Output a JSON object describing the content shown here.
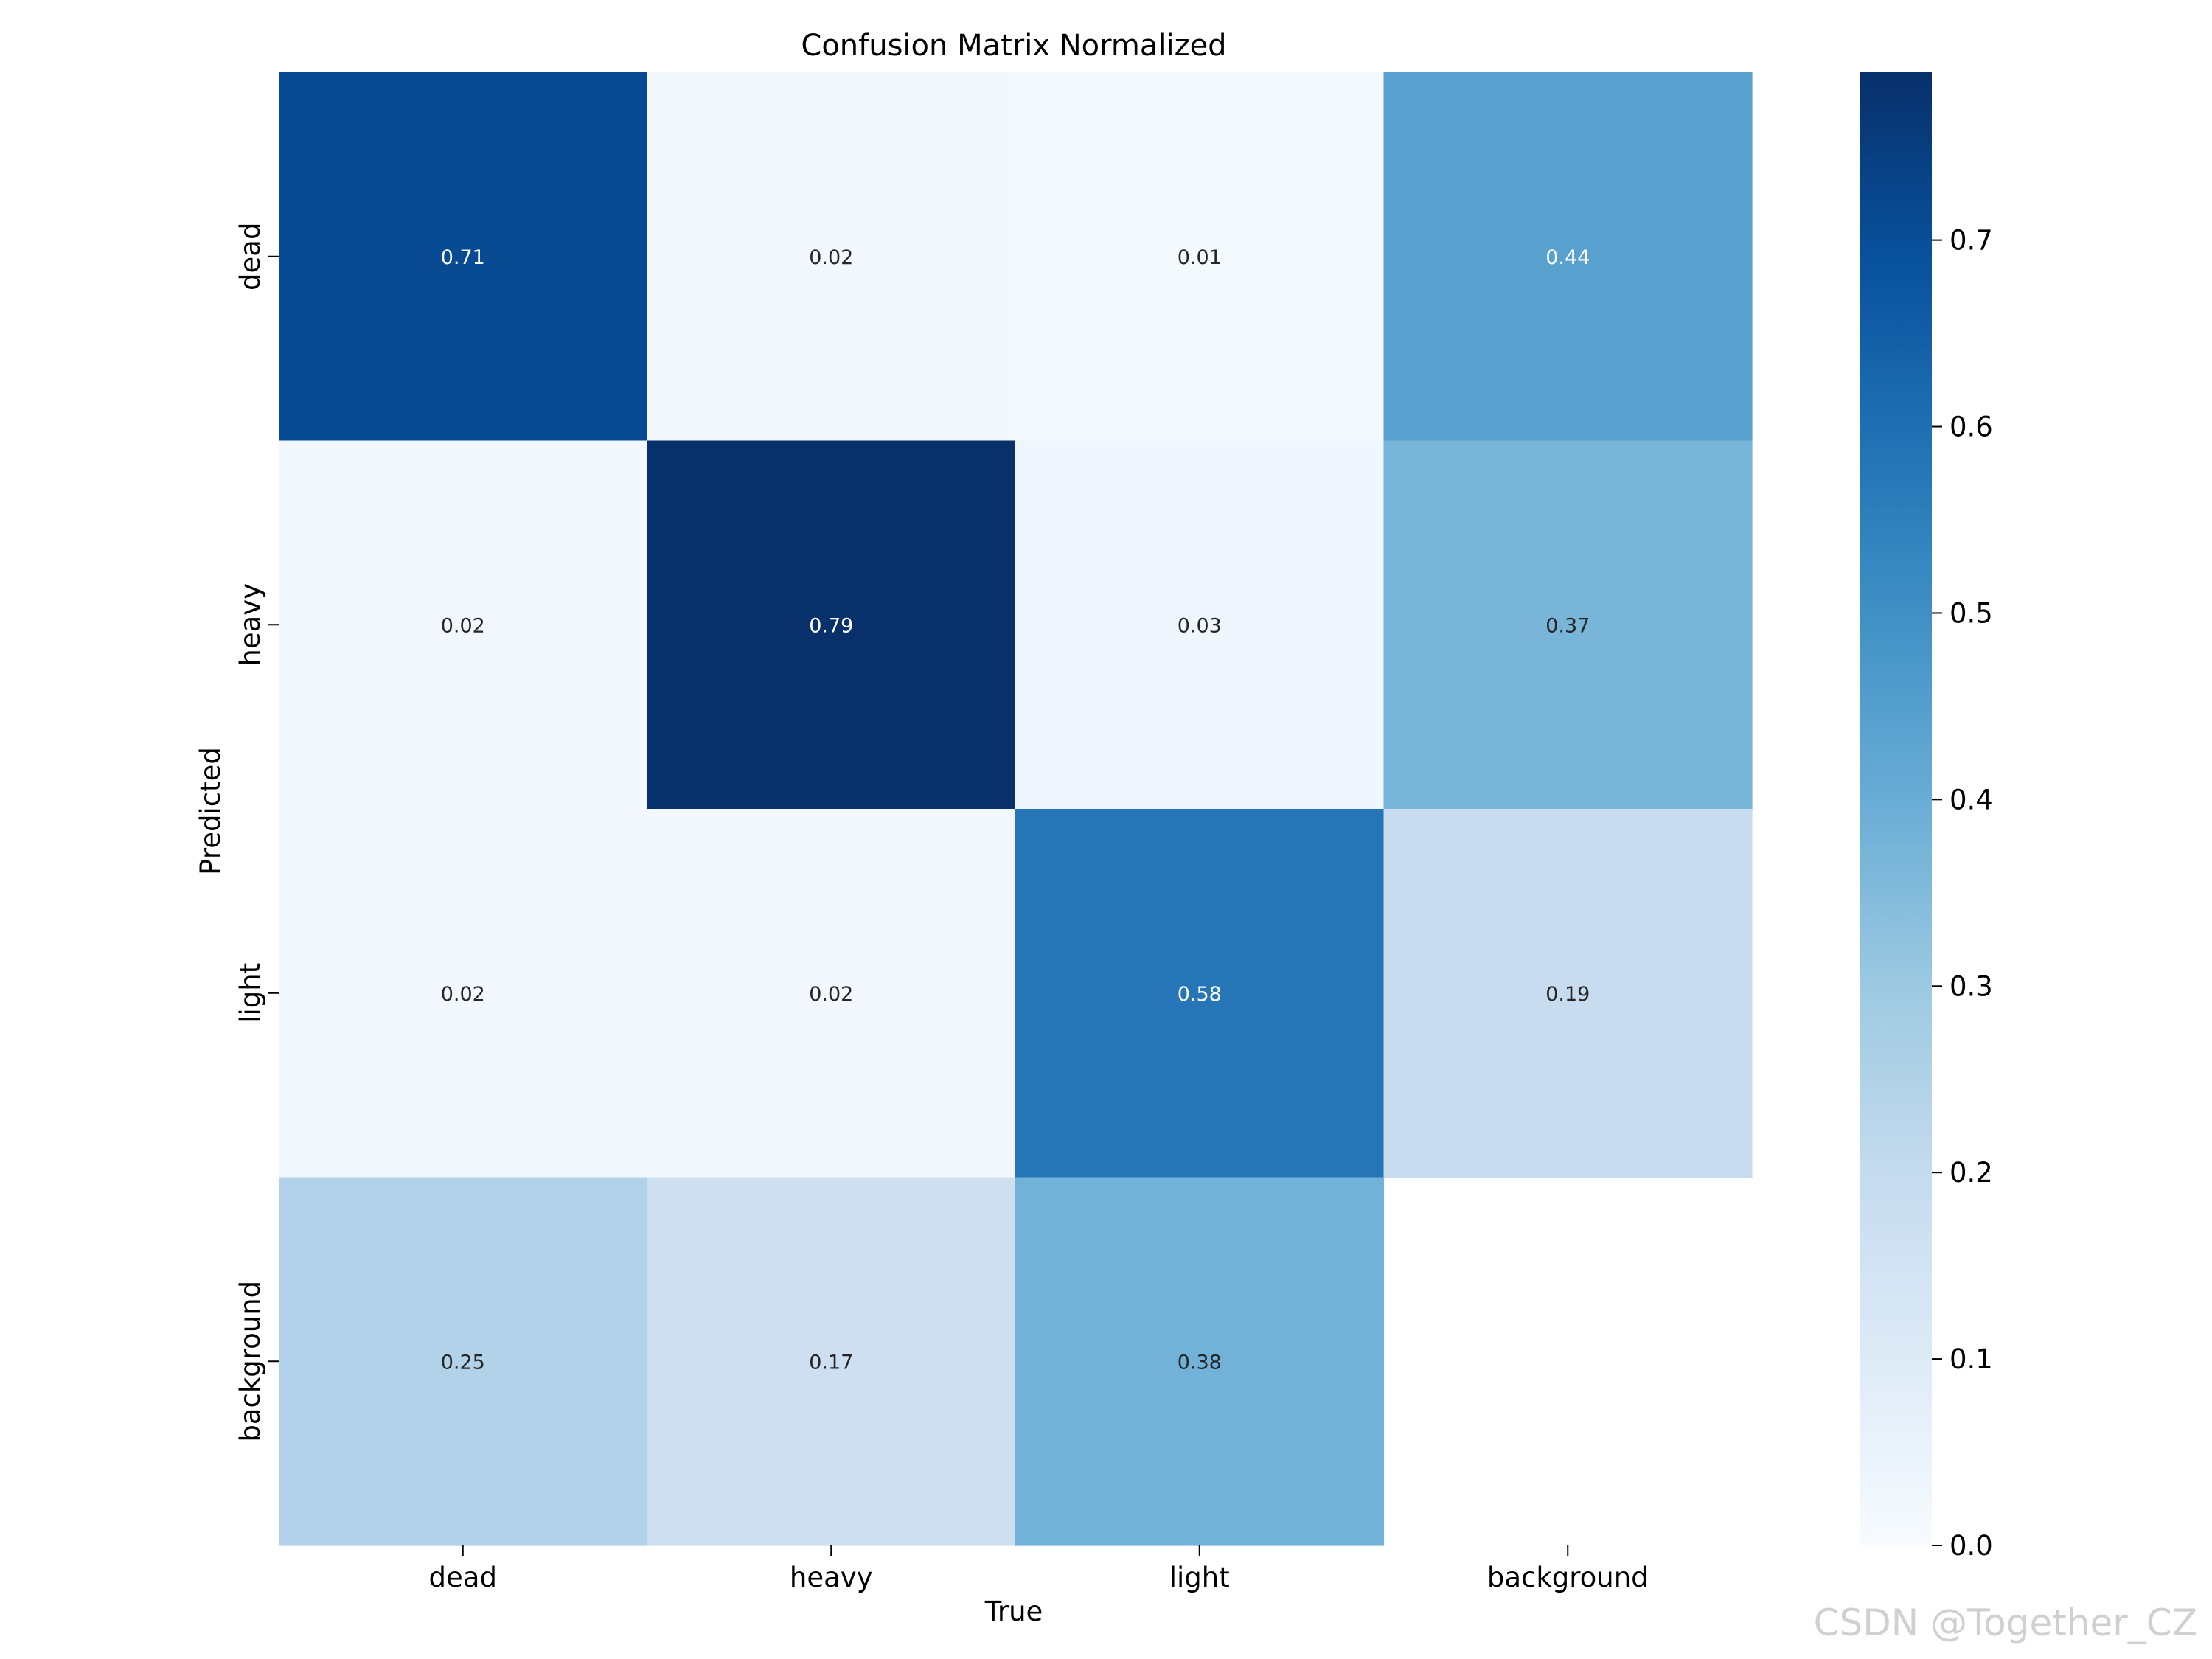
{
  "chart_data": {
    "type": "heatmap",
    "title": "Confusion Matrix Normalized",
    "xlabel": "True",
    "ylabel": "Predicted",
    "x_categories": [
      "dead",
      "heavy",
      "light",
      "background"
    ],
    "y_categories": [
      "dead",
      "heavy",
      "light",
      "background"
    ],
    "values": [
      [
        0.71,
        0.02,
        0.01,
        0.44
      ],
      [
        0.02,
        0.79,
        0.03,
        0.37
      ],
      [
        0.02,
        0.02,
        0.58,
        0.19
      ],
      [
        0.25,
        0.17,
        0.38,
        null
      ]
    ],
    "labels": [
      [
        "0.71",
        "0.02",
        "0.01",
        "0.44"
      ],
      [
        "0.02",
        "0.79",
        "0.03",
        "0.37"
      ],
      [
        "0.02",
        "0.02",
        "0.58",
        "0.19"
      ],
      [
        "0.25",
        "0.17",
        "0.38",
        ""
      ]
    ],
    "colormap": "Blues",
    "colorbar": {
      "vmin": 0.0,
      "vmax": 0.79,
      "ticks": [
        0.0,
        0.1,
        0.2,
        0.3,
        0.4,
        0.5,
        0.6,
        0.7
      ],
      "tick_labels": [
        "0.0",
        "0.1",
        "0.2",
        "0.3",
        "0.4",
        "0.5",
        "0.6",
        "0.7"
      ]
    }
  },
  "watermark": "CSDN @Together_CZ"
}
